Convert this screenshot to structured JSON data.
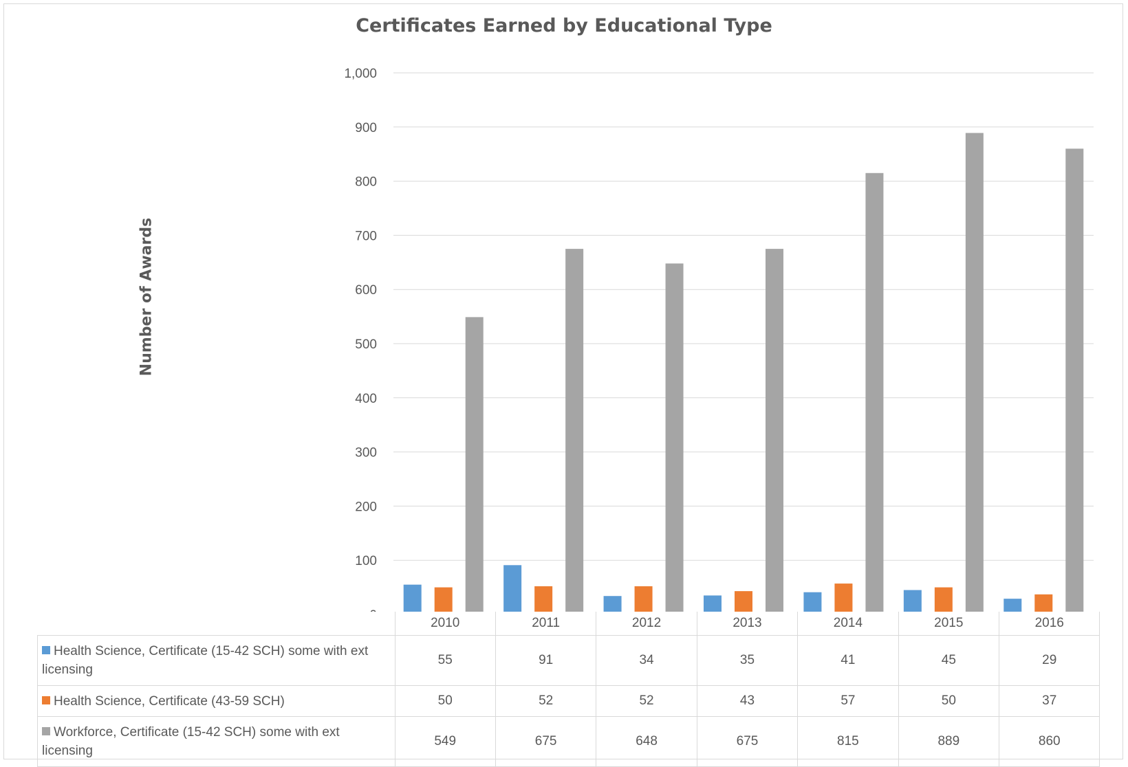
{
  "chart_data": {
    "type": "bar",
    "title": "Certificates Earned by Educational Type",
    "xlabel": "",
    "ylabel": "Number of Awards",
    "ylim": [
      0,
      1000
    ],
    "yticks": [
      "0",
      "100",
      "200",
      "300",
      "400",
      "500",
      "600",
      "700",
      "800",
      "900",
      "1,000"
    ],
    "ytick_values": [
      0,
      100,
      200,
      300,
      400,
      500,
      600,
      700,
      800,
      900,
      1000
    ],
    "categories": [
      "2010",
      "2011",
      "2012",
      "2013",
      "2014",
      "2015",
      "2016"
    ],
    "grid": true,
    "legend": "data-table",
    "series": [
      {
        "name": "Health Science, Certificate (15-42 SCH) some with ext licensing",
        "color": "#5b9bd5",
        "values": [
          55,
          91,
          34,
          35,
          41,
          45,
          29
        ]
      },
      {
        "name": "Health Science, Certificate (43-59 SCH)",
        "color": "#ed7d31",
        "values": [
          50,
          52,
          52,
          43,
          57,
          50,
          37
        ]
      },
      {
        "name": "Workforce, Certificate (15-42 SCH) some with ext licensing",
        "color": "#a5a5a5",
        "values": [
          549,
          675,
          648,
          675,
          815,
          889,
          860
        ]
      }
    ]
  }
}
